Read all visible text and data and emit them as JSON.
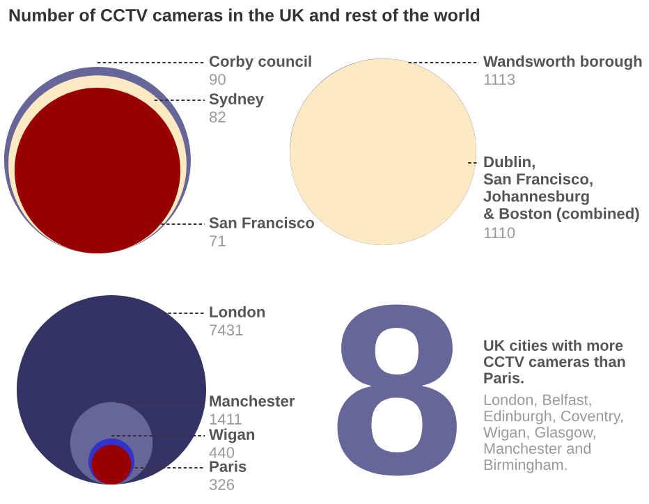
{
  "chart_data": [
    {
      "type": "other",
      "title": "Number of CCTV cameras in the UK and rest of the world",
      "categories": [
        "Corby council",
        "Sydney",
        "San Francisco"
      ],
      "values": [
        90,
        82,
        71
      ],
      "colors": [
        "#666699",
        "#fde9c2",
        "#990000"
      ],
      "data_labels": true
    },
    {
      "type": "other",
      "categories": [
        "Wandsworth borough",
        "Dublin,\nSan Francisco,\nJohannesburg\n& Boston (combined)"
      ],
      "values": [
        1113,
        1110
      ],
      "colors": [
        "#666699",
        "#fde9c2"
      ],
      "data_labels": true
    },
    {
      "type": "other",
      "categories": [
        "London",
        "Manchester",
        "Wigan",
        "Paris"
      ],
      "values": [
        7431,
        1411,
        440,
        326
      ],
      "colors": [
        "#333366",
        "#666699",
        "#3333cc",
        "#990000"
      ],
      "data_labels": true
    },
    {
      "type": "other",
      "title": "8",
      "subtitle": "UK cities with more\nCCTV cameras than\nParis.",
      "annotations": [
        "London, Belfast,\nEdinburgh, Coventry,\nWigan, Glasgow,\nManchester and\nBirmingham."
      ]
    }
  ]
}
